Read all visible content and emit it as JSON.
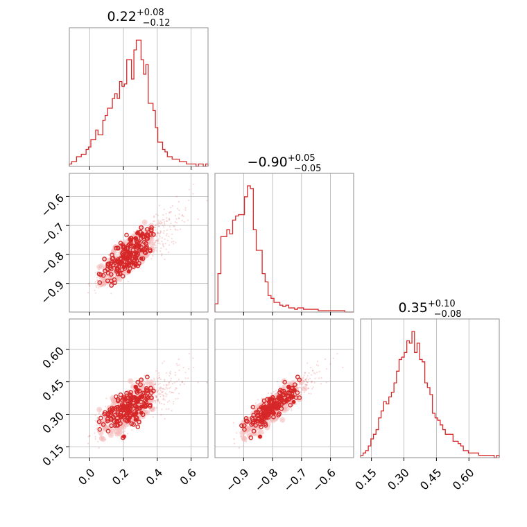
{
  "chart_data": {
    "type": "corner",
    "color": "#d62728",
    "fill_color": "#f4b6b7",
    "grid": true,
    "parameters": [
      {
        "index": 0,
        "median": "0.22",
        "err_plus": "+0.08",
        "err_minus": "−0.12",
        "range": [
          -0.12,
          0.7
        ],
        "ticks": [
          0.0,
          0.2,
          0.4,
          0.6
        ],
        "tick_labels": [
          "0.0",
          "0.2",
          "0.4",
          "0.6"
        ],
        "hist_counts": [
          1,
          2,
          2,
          4,
          4,
          5,
          5,
          7,
          8,
          11,
          11,
          15,
          13,
          13,
          19,
          21,
          24,
          24,
          28,
          30,
          28,
          35,
          33,
          34,
          44,
          44,
          36,
          48,
          52,
          52,
          44,
          38,
          42,
          26,
          26,
          23,
          16,
          10,
          10,
          7,
          6,
          4,
          4,
          3,
          3,
          3,
          2,
          2,
          2,
          1,
          1,
          1,
          1,
          0,
          1,
          1,
          0,
          1
        ]
      },
      {
        "index": 1,
        "median": "−0.90",
        "err_plus": "+0.05",
        "err_minus": "−0.05",
        "range": [
          -0.999,
          -0.52
        ],
        "ticks": [
          -0.9,
          -0.8,
          -0.7,
          -0.6
        ],
        "tick_labels": [
          "−0.9",
          "−0.8",
          "−0.7",
          "−0.6"
        ],
        "hist_counts": [
          6,
          28,
          55,
          55,
          60,
          57,
          67,
          70,
          71,
          71,
          84,
          92,
          90,
          60,
          45,
          45,
          28,
          22,
          12,
          10,
          7,
          7,
          5,
          4,
          5,
          3,
          3,
          2,
          3,
          3,
          2,
          2,
          2,
          2,
          2,
          1,
          1,
          1,
          1,
          1,
          1,
          1,
          1,
          1,
          0,
          0,
          0
        ]
      },
      {
        "index": 2,
        "median": "0.35",
        "err_plus": "+0.10",
        "err_minus": "−0.08",
        "range": [
          0.1,
          0.74
        ],
        "ticks": [
          0.15,
          0.3,
          0.45,
          0.6
        ],
        "tick_labels": [
          "0.15",
          "0.30",
          "0.45",
          "0.60"
        ],
        "hist_counts": [
          1,
          2,
          3,
          5,
          8,
          10,
          12,
          17,
          20,
          24,
          23,
          26,
          28,
          32,
          37,
          42,
          43,
          45,
          50,
          49,
          54,
          45,
          49,
          42,
          41,
          32,
          30,
          27,
          19,
          17,
          16,
          14,
          12,
          10,
          10,
          10,
          7,
          7,
          6,
          5,
          3,
          3,
          2,
          2,
          2,
          2,
          1,
          1,
          1,
          1,
          1,
          1,
          0,
          1
        ]
      }
    ],
    "pairs": [
      {
        "x_param": 0,
        "y_param": 1
      },
      {
        "x_param": 0,
        "y_param": 2
      },
      {
        "x_param": 1,
        "y_param": 2
      }
    ]
  }
}
